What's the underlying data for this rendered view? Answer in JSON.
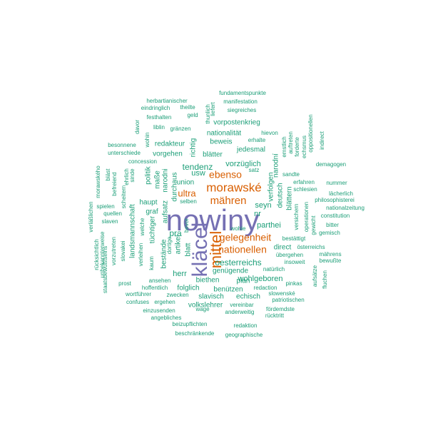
{
  "colors": {
    "teal": "#1b9e77",
    "orange": "#d95f02",
    "purple": "#7570b3"
  },
  "words": [
    {
      "text": "nowiny",
      "color": "purple"
    },
    {
      "text": "kläcel",
      "color": "purple"
    },
    {
      "text": "mittel",
      "color": "orange"
    },
    {
      "text": "morawské",
      "color": "orange"
    },
    {
      "text": "mähren",
      "color": "orange"
    },
    {
      "text": "gelegenheit",
      "color": "orange"
    },
    {
      "text": "nationellen",
      "color": "orange"
    },
    {
      "text": "ebenso",
      "color": "orange"
    },
    {
      "text": "ultra",
      "color": "orange"
    },
    {
      "text": "oesterreichs",
      "color": "teal"
    },
    {
      "text": "pra",
      "color": "teal"
    },
    {
      "text": "tendenz",
      "color": "teal"
    },
    {
      "text": "vorzüglich",
      "color": "teal"
    },
    {
      "text": "parthei",
      "color": "teal"
    },
    {
      "text": "seyn",
      "color": "teal"
    },
    {
      "text": "herr",
      "color": "teal"
    },
    {
      "text": "haupt",
      "color": "teal"
    },
    {
      "text": "artikel",
      "color": "teal"
    },
    {
      "text": "blatt",
      "color": "teal"
    },
    {
      "text": "wohlgeboren",
      "color": "teal"
    },
    {
      "text": "biethen",
      "color": "teal"
    },
    {
      "text": "plan",
      "color": "teal"
    },
    {
      "text": "slavisch",
      "color": "teal"
    },
    {
      "text": "echisch",
      "color": "teal"
    },
    {
      "text": "folglich",
      "color": "teal"
    },
    {
      "text": "benützen",
      "color": "teal"
    },
    {
      "text": "volkslehrer",
      "color": "teal"
    },
    {
      "text": "genügende",
      "color": "teal"
    },
    {
      "text": "jedesmal",
      "color": "teal"
    },
    {
      "text": "beweis",
      "color": "teal"
    },
    {
      "text": "blätter",
      "color": "teal"
    },
    {
      "text": "nationalität",
      "color": "teal"
    },
    {
      "text": "vorpostenkrieg",
      "color": "teal"
    },
    {
      "text": "redakteur",
      "color": "teal"
    },
    {
      "text": "vorgehen",
      "color": "teal"
    },
    {
      "text": "richtig",
      "color": "teal"
    },
    {
      "text": "graf",
      "color": "teal"
    },
    {
      "text": "politik",
      "color": "teal"
    },
    {
      "text": "maße",
      "color": "teal"
    },
    {
      "text": "narodni",
      "color": "teal"
    },
    {
      "text": "durchaus",
      "color": "teal"
    },
    {
      "text": "usw",
      "color": "teal"
    },
    {
      "text": "union",
      "color": "teal"
    },
    {
      "text": "aufsatz",
      "color": "teal"
    },
    {
      "text": "tüchtiger",
      "color": "teal"
    },
    {
      "text": "landsmannschaft",
      "color": "teal"
    },
    {
      "text": "bestände",
      "color": "teal"
    },
    {
      "text": "deutsch",
      "color": "teal"
    },
    {
      "text": "verfolgen",
      "color": "teal"
    },
    {
      "text": "narodní",
      "color": "teal"
    },
    {
      "text": "blättern",
      "color": "teal"
    },
    {
      "text": "direct",
      "color": "teal"
    },
    {
      "text": "nr",
      "color": "teal"
    },
    {
      "text": "oppositionellen",
      "color": "teal"
    },
    {
      "text": "indirect",
      "color": "teal"
    },
    {
      "text": "fundamentspunkte",
      "color": "teal"
    },
    {
      "text": "herbartianischer",
      "color": "teal"
    },
    {
      "text": "manifestation",
      "color": "teal"
    },
    {
      "text": "eindringlich",
      "color": "teal"
    },
    {
      "text": "theilte",
      "color": "teal"
    },
    {
      "text": "thunlich",
      "color": "teal"
    },
    {
      "text": "liefert",
      "color": "teal"
    },
    {
      "text": "siegreiches",
      "color": "teal"
    },
    {
      "text": "festhalten",
      "color": "teal"
    },
    {
      "text": "geld",
      "color": "teal"
    },
    {
      "text": "hievon",
      "color": "teal"
    },
    {
      "text": "liblin",
      "color": "teal"
    },
    {
      "text": "gränzen",
      "color": "teal"
    },
    {
      "text": "davor",
      "color": "teal"
    },
    {
      "text": "wohin",
      "color": "teal"
    },
    {
      "text": "erhalte",
      "color": "teal"
    },
    {
      "text": "besonnene",
      "color": "teal"
    },
    {
      "text": "unterschiede",
      "color": "teal"
    },
    {
      "text": "concession",
      "color": "teal"
    },
    {
      "text": "emstlich",
      "color": "teal"
    },
    {
      "text": "auftreten",
      "color": "teal"
    },
    {
      "text": "forderte",
      "color": "teal"
    },
    {
      "text": "echsmus",
      "color": "teal"
    },
    {
      "text": "demagogen",
      "color": "teal"
    },
    {
      "text": "morawského",
      "color": "teal"
    },
    {
      "text": "bläst",
      "color": "teal"
    },
    {
      "text": "befreiend",
      "color": "teal"
    },
    {
      "text": "ehrlich",
      "color": "teal"
    },
    {
      "text": "sinde",
      "color": "teal"
    },
    {
      "text": "satz",
      "color": "teal"
    },
    {
      "text": "sandte",
      "color": "teal"
    },
    {
      "text": "erfahren",
      "color": "teal"
    },
    {
      "text": "nummer",
      "color": "teal"
    },
    {
      "text": "schlesien",
      "color": "teal"
    },
    {
      "text": "lächerlich",
      "color": "teal"
    },
    {
      "text": "philosophisterei",
      "color": "teal"
    },
    {
      "text": "nationalzeitung",
      "color": "teal"
    },
    {
      "text": "constitution",
      "color": "teal"
    },
    {
      "text": "bitter",
      "color": "teal"
    },
    {
      "text": "gemisch",
      "color": "teal"
    },
    {
      "text": "operationen",
      "color": "teal"
    },
    {
      "text": "gewicht",
      "color": "teal"
    },
    {
      "text": "versichern",
      "color": "teal"
    },
    {
      "text": "verläßlichen",
      "color": "teal"
    },
    {
      "text": "spielen",
      "color": "teal"
    },
    {
      "text": "quellen",
      "color": "teal"
    },
    {
      "text": "slaven",
      "color": "teal"
    },
    {
      "text": "scheitern",
      "color": "teal"
    },
    {
      "text": "selben",
      "color": "teal"
    },
    {
      "text": "bevor",
      "color": "teal"
    },
    {
      "text": "dortige",
      "color": "teal"
    },
    {
      "text": "welche",
      "color": "teal"
    },
    {
      "text": "wohle",
      "color": "teal"
    },
    {
      "text": "bestättigt",
      "color": "teal"
    },
    {
      "text": "österreichs",
      "color": "teal"
    },
    {
      "text": "übergehen",
      "color": "teal"
    },
    {
      "text": "mährens",
      "color": "teal"
    },
    {
      "text": "insoweit",
      "color": "teal"
    },
    {
      "text": "bewußte",
      "color": "teal"
    },
    {
      "text": "natürlich",
      "color": "teal"
    },
    {
      "text": "rücksichtlich",
      "color": "teal"
    },
    {
      "text": "unbekannterweise",
      "color": "teal"
    },
    {
      "text": "vorzutreten",
      "color": "teal"
    },
    {
      "text": "slovakei",
      "color": "teal"
    },
    {
      "text": "staatsbewußtseins",
      "color": "teal"
    },
    {
      "text": "verleihen",
      "color": "teal"
    },
    {
      "text": "kaum",
      "color": "teal"
    },
    {
      "text": "prost",
      "color": "teal"
    },
    {
      "text": "ansehen",
      "color": "teal"
    },
    {
      "text": "hoffentlich",
      "color": "teal"
    },
    {
      "text": "wortführer",
      "color": "teal"
    },
    {
      "text": "zwecken",
      "color": "teal"
    },
    {
      "text": "confuses",
      "color": "teal"
    },
    {
      "text": "ergehen",
      "color": "teal"
    },
    {
      "text": "einzusenden",
      "color": "teal"
    },
    {
      "text": "angebliches",
      "color": "teal"
    },
    {
      "text": "beizupflichten",
      "color": "teal"
    },
    {
      "text": "wage",
      "color": "teal"
    },
    {
      "text": "anderweitig",
      "color": "teal"
    },
    {
      "text": "vereinbar",
      "color": "teal"
    },
    {
      "text": "redaction",
      "color": "teal"
    },
    {
      "text": "slowenské",
      "color": "teal"
    },
    {
      "text": "patriotischen",
      "color": "teal"
    },
    {
      "text": "fördemdste",
      "color": "teal"
    },
    {
      "text": "rücktritt",
      "color": "teal"
    },
    {
      "text": "pinkas",
      "color": "teal"
    },
    {
      "text": "aufsätze",
      "color": "teal"
    },
    {
      "text": "fluchen",
      "color": "teal"
    },
    {
      "text": "redaktion",
      "color": "teal"
    },
    {
      "text": "beschränkende",
      "color": "teal"
    },
    {
      "text": "geographische",
      "color": "teal"
    }
  ]
}
